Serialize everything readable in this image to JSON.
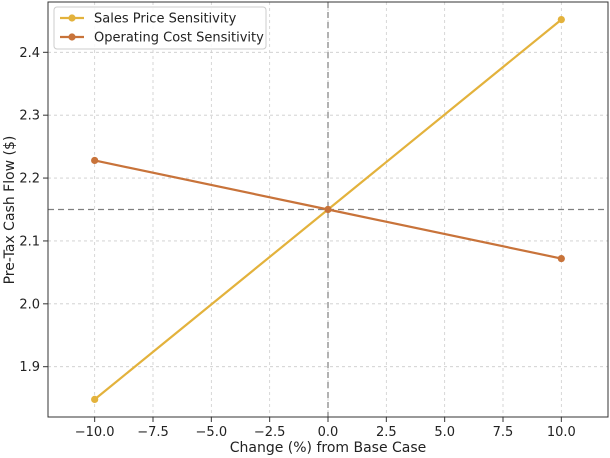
{
  "chart_data": {
    "type": "line",
    "title": "",
    "xlabel": "Change (%) from Base Case",
    "ylabel": "Pre-Tax Cash Flow ($)",
    "x": [
      -10.0,
      0.0,
      10.0
    ],
    "xlim": [
      -12.0,
      12.0
    ],
    "ylim": [
      1.82,
      2.48
    ],
    "xticks": [
      -10.0,
      -7.5,
      -5.0,
      -2.5,
      0.0,
      2.5,
      5.0,
      7.5,
      10.0
    ],
    "xtick_labels": [
      "−10.0",
      "−7.5",
      "−5.0",
      "−2.5",
      "0.0",
      "2.5",
      "5.0",
      "7.5",
      "10.0"
    ],
    "yticks": [
      1.9,
      2.0,
      2.1,
      2.2,
      2.3,
      2.4
    ],
    "ytick_labels": [
      "1.9",
      "2.0",
      "2.1",
      "2.2",
      "2.3",
      "2.4"
    ],
    "grid": true,
    "legend_position": "top-left",
    "reference_lines": {
      "x": 0.0,
      "y": 2.15
    },
    "series": [
      {
        "name": "Sales Price Sensitivity",
        "color": "#E3B23C",
        "values": [
          1.848,
          2.15,
          2.452
        ]
      },
      {
        "name": "Operating Cost Sensitivity",
        "color": "#C8733A",
        "values": [
          2.228,
          2.15,
          2.072
        ]
      }
    ]
  }
}
